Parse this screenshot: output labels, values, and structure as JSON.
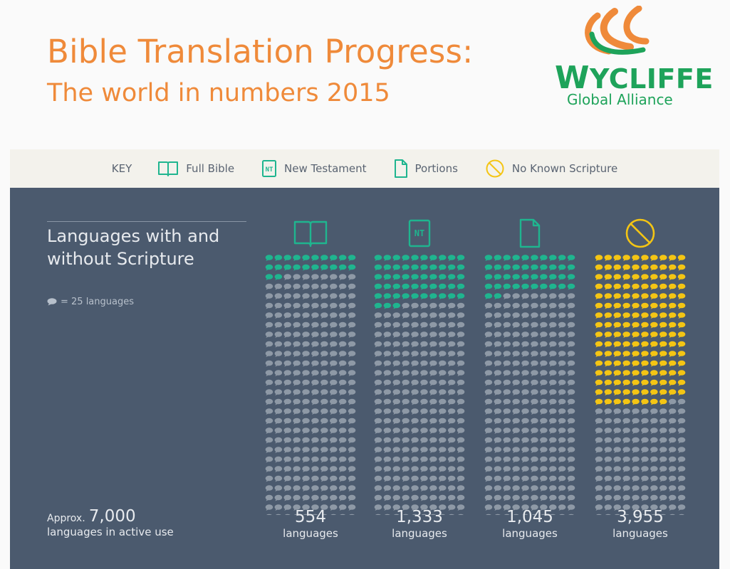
{
  "header": {
    "title": "Bible Translation Progress:",
    "subtitle": "The world in numbers 2015",
    "logo": {
      "name_first": "W",
      "name_rest": "YCLIFFE",
      "tagline": "Global Alliance",
      "colors": [
        "#ef8a3a",
        "#1ea35a"
      ]
    }
  },
  "key": {
    "label": "KEY",
    "items": [
      {
        "icon": "open-book-icon",
        "label": "Full Bible"
      },
      {
        "icon": "nt-book-icon",
        "label": "New Testament"
      },
      {
        "icon": "page-icon",
        "label": "Portions"
      },
      {
        "icon": "no-entry-icon",
        "label": "No Known Scripture"
      }
    ]
  },
  "panel": {
    "heading": "Languages with and without Scripture",
    "unit_note": "= 25 languages",
    "total_prefix": "Approx.",
    "total_value": "7,000",
    "total_caption": "languages in active use"
  },
  "colors": {
    "header_text": "#ef8a3a",
    "panel_bg": "#4b5a6e",
    "icon_teal": "#1fb58f",
    "teal_bubble": "#1fb58f",
    "yellow_bubble": "#f4c514",
    "grey_bubble": "#8e99a6"
  },
  "chart_data": {
    "type": "waffle",
    "unit": 25,
    "total": 7000,
    "categories": [
      "Full Bible",
      "New Testament",
      "Portions",
      "No Known Scripture"
    ],
    "values": [
      554,
      1333,
      1045,
      3955
    ],
    "value_labels": [
      "554",
      "1,333",
      "1,045",
      "3,955"
    ],
    "unit_label": "languages",
    "icons": [
      "open-book-icon",
      "nt-book-icon",
      "page-icon",
      "no-entry-icon"
    ],
    "highlight_colors": [
      "#1fb58f",
      "#1fb58f",
      "#1fb58f",
      "#f4c514"
    ]
  }
}
